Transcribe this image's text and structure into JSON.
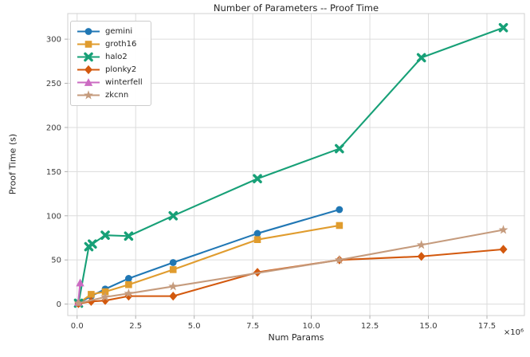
{
  "window": {
    "background": "#ffffff"
  },
  "chart_data": {
    "type": "line",
    "title": "Number of Parameters -- Proof Time",
    "xlabel": "Num Params",
    "ylabel": "Proof Time (s)",
    "x_multiplier": "×10⁶",
    "x_units": "millions of parameters",
    "xlim": [
      -0.4,
      19.1
    ],
    "ylim": [
      -13,
      329
    ],
    "grid": true,
    "legend_position": "upper-left",
    "xticks": {
      "values": [
        0,
        2.5,
        5,
        7.5,
        10,
        12.5,
        15,
        17.5
      ],
      "labels": [
        "0.0",
        "2.5",
        "5.0",
        "7.5",
        "10.0",
        "12.5",
        "15.0",
        "17.5"
      ]
    },
    "yticks": {
      "values": [
        0,
        50,
        100,
        150,
        200,
        250,
        300
      ],
      "labels": [
        "0",
        "50",
        "100",
        "150",
        "200",
        "250",
        "300"
      ]
    },
    "series": [
      {
        "name": "gemini",
        "color": "#2077b4",
        "marker": "circle",
        "points": [
          [
            0.06,
            1
          ],
          [
            0.6,
            9
          ],
          [
            1.2,
            17
          ],
          [
            2.2,
            29
          ],
          [
            4.1,
            47
          ],
          [
            7.7,
            80
          ],
          [
            11.2,
            107
          ]
        ]
      },
      {
        "name": "groth16",
        "color": "#e09c2e",
        "marker": "square",
        "points": [
          [
            0.06,
            1
          ],
          [
            0.6,
            11
          ],
          [
            1.2,
            14
          ],
          [
            2.2,
            22
          ],
          [
            4.1,
            39
          ],
          [
            7.7,
            73
          ],
          [
            11.2,
            89
          ]
        ]
      },
      {
        "name": "halo2",
        "color": "#17a077",
        "marker": "x",
        "points": [
          [
            0.06,
            1
          ],
          [
            0.5,
            65
          ],
          [
            0.65,
            68
          ],
          [
            1.2,
            78
          ],
          [
            2.2,
            77
          ],
          [
            4.1,
            100
          ],
          [
            7.7,
            142
          ],
          [
            11.2,
            176
          ],
          [
            14.7,
            279
          ],
          [
            18.2,
            313
          ]
        ]
      },
      {
        "name": "plonky2",
        "color": "#d3590e",
        "marker": "diamond",
        "points": [
          [
            0.06,
            0.5
          ],
          [
            0.6,
            3
          ],
          [
            1.2,
            4
          ],
          [
            2.2,
            9
          ],
          [
            4.1,
            9
          ],
          [
            7.7,
            36
          ],
          [
            11.2,
            50
          ],
          [
            14.7,
            54
          ],
          [
            18.2,
            62
          ]
        ]
      },
      {
        "name": "winterfell",
        "color": "#cb6bc2",
        "marker": "triangle",
        "points": [
          [
            0.05,
            2
          ],
          [
            0.13,
            24
          ]
        ]
      },
      {
        "name": "zkcnn",
        "color": "#c59b7d",
        "marker": "star",
        "points": [
          [
            0.06,
            1
          ],
          [
            1.2,
            8
          ],
          [
            2.2,
            12
          ],
          [
            4.1,
            20
          ],
          [
            11.2,
            50
          ],
          [
            14.7,
            67
          ],
          [
            18.2,
            84
          ]
        ]
      }
    ]
  },
  "colors": {
    "grid": "#dcdcdc",
    "axis_frame": "#d0d0d0",
    "tick_mark": "#b0b0b0",
    "tick_text": "#3b3b3b",
    "title_text": "#262626"
  }
}
